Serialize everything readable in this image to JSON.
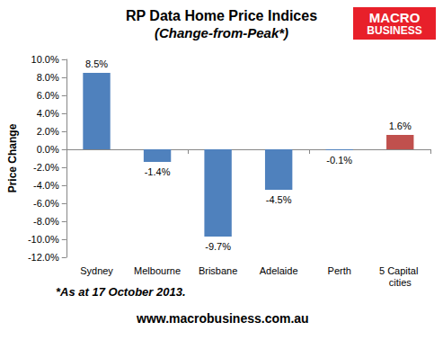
{
  "chart_data": {
    "type": "bar",
    "title": "RP Data Home Price Indices",
    "subtitle": "(Change-from-Peak*)",
    "y_label": "Price Change",
    "categories": [
      "Sydney",
      "Melbourne",
      "Brisbane",
      "Adelaide",
      "Perth",
      "5 Capital cities"
    ],
    "values": [
      8.5,
      -1.4,
      -9.7,
      -4.5,
      -0.1,
      1.6
    ],
    "value_labels": [
      "8.5%",
      "-1.4%",
      "-9.7%",
      "-4.5%",
      "-0.1%",
      "1.6%"
    ],
    "colors": [
      "#4f81bd",
      "#4f81bd",
      "#4f81bd",
      "#4f81bd",
      "#4f81bd",
      "#c0504d"
    ],
    "ylim": [
      -12,
      10
    ],
    "yticks": [
      {
        "value": -12,
        "label": "-12.0%"
      },
      {
        "value": -10,
        "label": "-10.0%"
      },
      {
        "value": -8,
        "label": "-8.0%"
      },
      {
        "value": -6,
        "label": "-6.0%"
      },
      {
        "value": -4,
        "label": "-4.0%"
      },
      {
        "value": -2,
        "label": "-2.0%"
      },
      {
        "value": 0,
        "label": "0.0%"
      },
      {
        "value": 2,
        "label": "2.0%"
      },
      {
        "value": 4,
        "label": "4.0%"
      },
      {
        "value": 6,
        "label": "6.0%"
      },
      {
        "value": 8,
        "label": "8.0%"
      },
      {
        "value": 10,
        "label": "10.0%"
      }
    ],
    "grid": false,
    "data_labels": true,
    "annotations": [
      "*As at 17 October 2013.",
      "www.macrobusiness.com.au"
    ],
    "logo": [
      "MACRO",
      "BUSINESS"
    ]
  }
}
